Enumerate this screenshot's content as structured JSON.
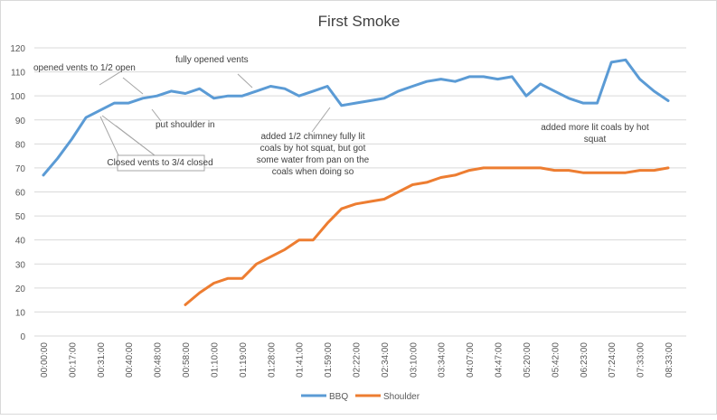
{
  "chart_data": {
    "type": "line",
    "title": "First Smoke",
    "xlabel": "",
    "ylabel": "",
    "ylim": [
      0,
      120
    ],
    "yticks": [
      0,
      10,
      20,
      30,
      40,
      50,
      60,
      70,
      80,
      90,
      100,
      110,
      120
    ],
    "grid": true,
    "legend": "bottom",
    "categories": [
      "00:00:00",
      "",
      "00:17:00",
      "",
      "00:31:00",
      "",
      "00:40:00",
      "",
      "00:48:00",
      "",
      "00:58:00",
      "",
      "01:10:00",
      "",
      "01:19:00",
      "",
      "01:28:00",
      "",
      "01:41:00",
      "",
      "01:59:00",
      "",
      "02:22:00",
      "",
      "02:34:00",
      "",
      "03:10:00",
      "",
      "03:34:00",
      "",
      "04:07:00",
      "",
      "04:47:00",
      "",
      "05:20:00",
      "",
      "05:42:00",
      "",
      "06:23:00",
      "",
      "07:24:00",
      "",
      "07:33:00",
      "",
      "08:33:00"
    ],
    "series": [
      {
        "name": "BBQ",
        "color": "#5b9bd5",
        "values": [
          67,
          74,
          82,
          91,
          94,
          97,
          97,
          99,
          100,
          102,
          101,
          103,
          99,
          100,
          100,
          102,
          104,
          103,
          100,
          102,
          104,
          96,
          97,
          98,
          99,
          102,
          104,
          106,
          107,
          106,
          108,
          108,
          107,
          108,
          100,
          105,
          102,
          99,
          97,
          97,
          114,
          115,
          107,
          102,
          98
        ]
      },
      {
        "name": "Shoulder",
        "color": "#ed7d31",
        "values": [
          null,
          null,
          null,
          null,
          null,
          null,
          null,
          null,
          null,
          null,
          13,
          18,
          22,
          24,
          24,
          30,
          33,
          36,
          40,
          40,
          47,
          53,
          55,
          56,
          57,
          60,
          63,
          64,
          66,
          67,
          69,
          70,
          70,
          70,
          70,
          70,
          69,
          69,
          68,
          68,
          68,
          68,
          69,
          69,
          70
        ]
      }
    ],
    "annotations": [
      {
        "id": "opened",
        "lines": [
          "opened vents to 1/2 open"
        ]
      },
      {
        "id": "fully",
        "lines": [
          "fully opened vents"
        ]
      },
      {
        "id": "shoulder",
        "lines": [
          "put shoulder in"
        ]
      },
      {
        "id": "closed",
        "lines": [
          "Closed vents to 3/4 closed"
        ]
      },
      {
        "id": "chimney",
        "lines": [
          "added 1/2 chimney fully lit",
          "coals by hot squat, but got",
          "some water from pan on the",
          "coals when doing so"
        ]
      },
      {
        "id": "morecoals",
        "lines": [
          "added more lit coals by hot",
          "squat"
        ]
      }
    ]
  }
}
